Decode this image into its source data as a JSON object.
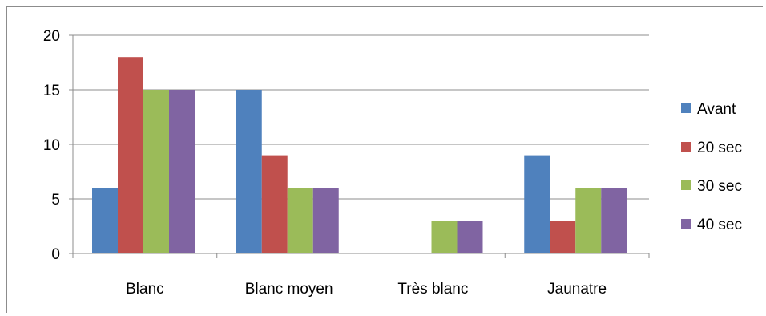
{
  "chart_data": {
    "type": "bar",
    "categories": [
      "Blanc",
      "Blanc moyen",
      "Très blanc",
      "Jaunatre"
    ],
    "series": [
      {
        "name": "Avant",
        "values": [
          6,
          15,
          0,
          9
        ],
        "color": "#4f81bd"
      },
      {
        "name": "20 sec",
        "values": [
          18,
          9,
          0,
          3
        ],
        "color": "#c0504d"
      },
      {
        "name": "30 sec",
        "values": [
          15,
          6,
          3,
          6
        ],
        "color": "#9bbb59"
      },
      {
        "name": "40 sec",
        "values": [
          15,
          6,
          3,
          6
        ],
        "color": "#8064a2"
      }
    ],
    "yticks": [
      0,
      5,
      10,
      15,
      20
    ],
    "ylim": [
      0,
      20
    ],
    "grid": true,
    "legend_position": "right",
    "title": "",
    "xlabel": "",
    "ylabel": ""
  }
}
